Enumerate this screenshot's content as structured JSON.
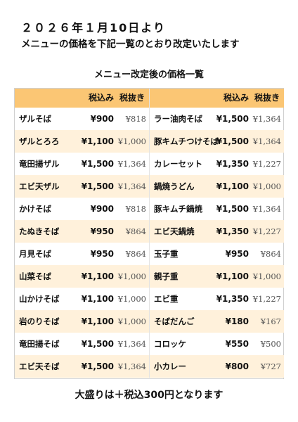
{
  "notice": {
    "date": "２０２６年１月10日より",
    "message": "メニューの価格を下記一覧のとおり改定いたします"
  },
  "table": {
    "title": "メニュー改定後の価格一覧",
    "headers": {
      "tax_included": "税込み",
      "tax_excluded": "税抜き"
    },
    "left": [
      {
        "name": "ザルそば",
        "tax_in": "¥900",
        "tax_ex": "¥818"
      },
      {
        "name": "ザルとろろ",
        "tax_in": "¥1,100",
        "tax_ex": "¥1,000"
      },
      {
        "name": "竜田揚ザル",
        "tax_in": "¥1,500",
        "tax_ex": "¥1,364"
      },
      {
        "name": "エビ天ザル",
        "tax_in": "¥1,500",
        "tax_ex": "¥1,364"
      },
      {
        "name": "かけそば",
        "tax_in": "¥900",
        "tax_ex": "¥818"
      },
      {
        "name": "たぬきそば",
        "tax_in": "¥950",
        "tax_ex": "¥864"
      },
      {
        "name": "月見そば",
        "tax_in": "¥950",
        "tax_ex": "¥864"
      },
      {
        "name": "山菜そば",
        "tax_in": "¥1,100",
        "tax_ex": "¥1,000"
      },
      {
        "name": "山かけそば",
        "tax_in": "¥1,100",
        "tax_ex": "¥1,000"
      },
      {
        "name": "岩のりそば",
        "tax_in": "¥1,100",
        "tax_ex": "¥1,000"
      },
      {
        "name": "竜田揚そば",
        "tax_in": "¥1,500",
        "tax_ex": "¥1,364"
      },
      {
        "name": "エビ天そば",
        "tax_in": "¥1,500",
        "tax_ex": "¥1,364"
      }
    ],
    "right": [
      {
        "name": "ラー油肉そば",
        "tax_in": "¥1,500",
        "tax_ex": "¥1,364"
      },
      {
        "name": "豚キムチつけそば",
        "tax_in": "¥1,500",
        "tax_ex": "¥1,364"
      },
      {
        "name": "カレーセット",
        "tax_in": "¥1,350",
        "tax_ex": "¥1,227"
      },
      {
        "name": "鍋焼うどん",
        "tax_in": "¥1,100",
        "tax_ex": "¥1,000"
      },
      {
        "name": "豚キムチ鍋焼",
        "tax_in": "¥1,500",
        "tax_ex": "¥1,364"
      },
      {
        "name": "エビ天鍋焼",
        "tax_in": "¥1,350",
        "tax_ex": "¥1,227"
      },
      {
        "name": "玉子重",
        "tax_in": "¥950",
        "tax_ex": "¥864"
      },
      {
        "name": "親子重",
        "tax_in": "¥1,100",
        "tax_ex": "¥1,000"
      },
      {
        "name": "エビ重",
        "tax_in": "¥1,350",
        "tax_ex": "¥1,227"
      },
      {
        "name": "そばだんご",
        "tax_in": "¥180",
        "tax_ex": "¥167"
      },
      {
        "name": "コロッケ",
        "tax_in": "¥550",
        "tax_ex": "¥500"
      },
      {
        "name": "小カレー",
        "tax_in": "¥800",
        "tax_ex": "¥727"
      }
    ]
  },
  "footer": {
    "note": "大盛りは＋税込300円となります"
  },
  "colors": {
    "header_bg": "#fbc674",
    "alt_row_bg": "#fff1db",
    "border": "#d0d0d0"
  }
}
